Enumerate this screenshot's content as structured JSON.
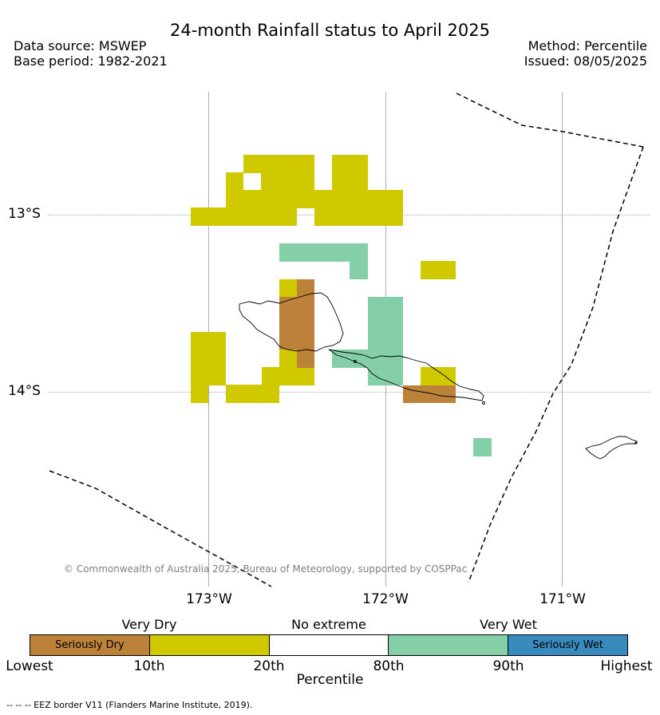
{
  "header": {
    "title": "24-month Rainfall status to April 2025",
    "data_source": "Data source: MSWEP",
    "base_period": "Base period: 1982-2021",
    "method": "Method: Percentile",
    "issued": "Issued: 08/05/2025"
  },
  "map": {
    "longitude_labels": [
      "173°W",
      "172°W",
      "171°W"
    ],
    "latitude_labels": [
      "13°S",
      "14°S"
    ],
    "copyright": "© Commonwealth of Australia 2025, Bureau of Meteorology, supported by COSPPac",
    "colors": {
      "seriously_dry": "#bc823a",
      "very_dry": "#d0c900",
      "no_extreme": "#ffffff",
      "very_wet": "#84cfa8",
      "seriously_wet": "#3a8bbd"
    }
  },
  "legend": {
    "category_labels": [
      "Very Dry",
      "No extreme",
      "Very Wet"
    ],
    "segments": [
      {
        "label": "Seriously Dry",
        "color": "#bc823a"
      },
      {
        "label": "",
        "color": "#d0c900"
      },
      {
        "label": "",
        "color": "#ffffff"
      },
      {
        "label": "",
        "color": "#84cfa8"
      },
      {
        "label": "Seriously Wet",
        "color": "#3a8bbd"
      }
    ],
    "ticks": [
      "Lowest",
      "10th",
      "20th",
      "80th",
      "90th",
      "Highest"
    ],
    "title": "Percentile"
  },
  "footer": {
    "note": "--  --  -- EEZ border V11 (Flanders Marine Institute, 2019)."
  }
}
